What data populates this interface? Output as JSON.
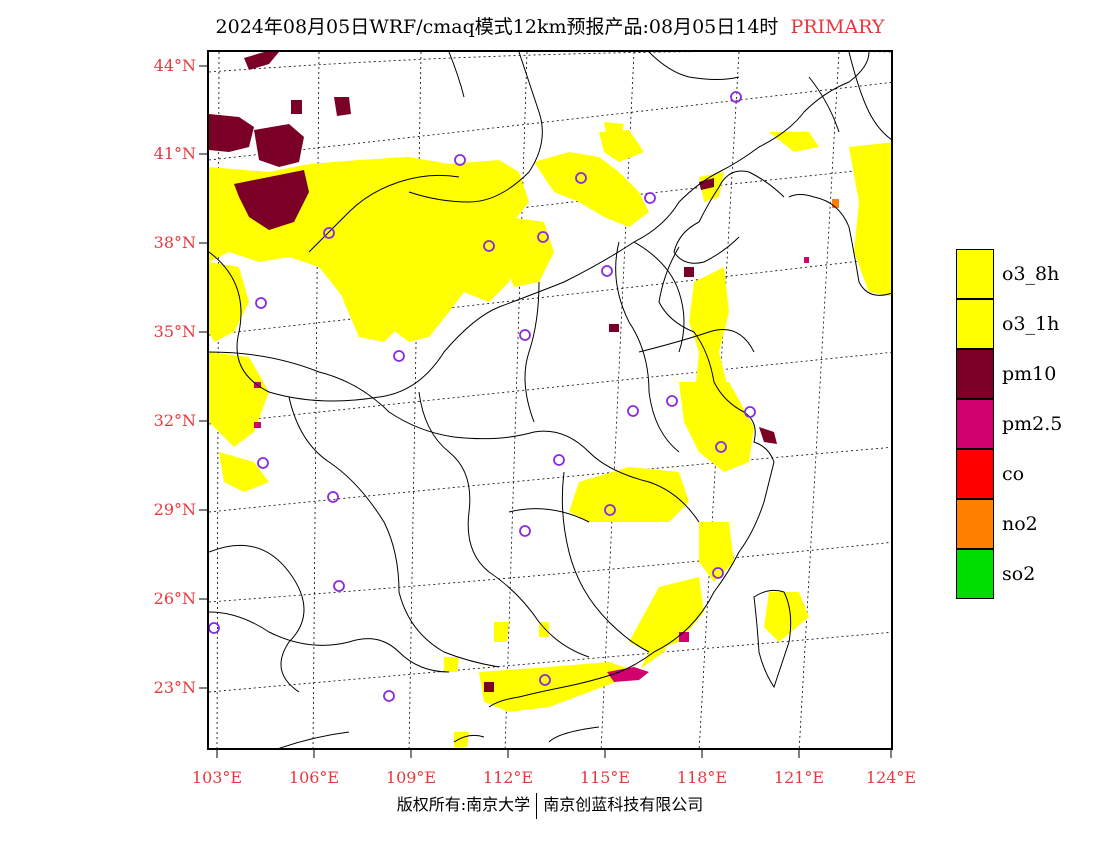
{
  "title": {
    "main": "2024年08月05日WRF/cmaq模式12km预报产品:08月05日14时",
    "tag": "PRIMARY"
  },
  "axes": {
    "lat_labels": [
      "44°N",
      "41°N",
      "38°N",
      "35°N",
      "32°N",
      "29°N",
      "26°N",
      "23°N"
    ],
    "lon_labels": [
      "103°E",
      "106°E",
      "109°E",
      "112°E",
      "115°E",
      "118°E",
      "121°E",
      "124°E"
    ]
  },
  "legend": [
    {
      "label": "o3_8h",
      "color": "#ffff00"
    },
    {
      "label": "o3_1h",
      "color": "#ffff00"
    },
    {
      "label": "pm10",
      "color": "#7a0026"
    },
    {
      "label": "pm2.5",
      "color": "#d1006f"
    },
    {
      "label": "co",
      "color": "#ff0000"
    },
    {
      "label": "no2",
      "color": "#ff7f00"
    },
    {
      "label": "so2",
      "color": "#00dd00"
    }
  ],
  "footer": {
    "left": "版权所有:南京大学",
    "right": "南京创蓝科技有限公司"
  },
  "colors": {
    "accent": "#e8383d",
    "o3": "#ffff00",
    "pm10": "#7a0026",
    "pm25": "#d1006f",
    "station": "#8a2be2"
  }
}
